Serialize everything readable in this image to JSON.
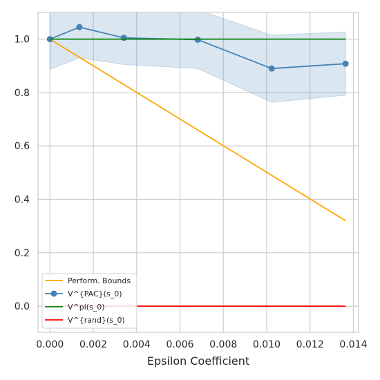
{
  "chart_data": {
    "type": "line",
    "title": "",
    "xlabel": "Epsilon Coefficient",
    "ylabel": "",
    "xlim": [
      -0.00055,
      0.01424
    ],
    "ylim": [
      -0.098,
      1.1
    ],
    "xticks": [
      0.0,
      0.002,
      0.004,
      0.006,
      0.008,
      0.01,
      0.012,
      0.014
    ],
    "xtick_labels": [
      "0.000",
      "0.002",
      "0.004",
      "0.006",
      "0.008",
      "0.010",
      "0.012",
      "0.014"
    ],
    "yticks": [
      0.0,
      0.2,
      0.4,
      0.6,
      0.8,
      1.0
    ],
    "ytick_labels": [
      "0.0",
      "0.2",
      "0.4",
      "0.6",
      "0.8",
      "1.0"
    ],
    "grid": true,
    "legend_position": "bottom-left",
    "series": [
      {
        "name": "Perform. Bounds",
        "color": "#ffa500",
        "marker": false,
        "x": [
          0.0,
          0.01364
        ],
        "y": [
          1.0,
          0.32
        ]
      },
      {
        "name": "V^{PAC}(s_0)",
        "color": "#4682b4",
        "marker": true,
        "x": [
          0.0,
          0.00136,
          0.00341,
          0.00682,
          0.01023,
          0.01364
        ],
        "y": [
          1.0,
          1.045,
          1.005,
          0.998,
          0.89,
          0.908
        ],
        "band_lower": [
          0.887,
          0.93,
          0.905,
          0.89,
          0.763,
          0.79
        ],
        "band_upper": [
          1.12,
          1.15,
          1.12,
          1.11,
          1.015,
          1.027
        ]
      },
      {
        "name": "V^pi(s_0)",
        "color": "#008000",
        "marker": false,
        "x": [
          0.0,
          0.01364
        ],
        "y": [
          1.0,
          1.0
        ]
      },
      {
        "name": "V^{rand}(s_0)",
        "color": "#ff0000",
        "marker": false,
        "x": [
          0.0,
          0.01364
        ],
        "y": [
          0.0,
          0.0
        ]
      }
    ]
  }
}
